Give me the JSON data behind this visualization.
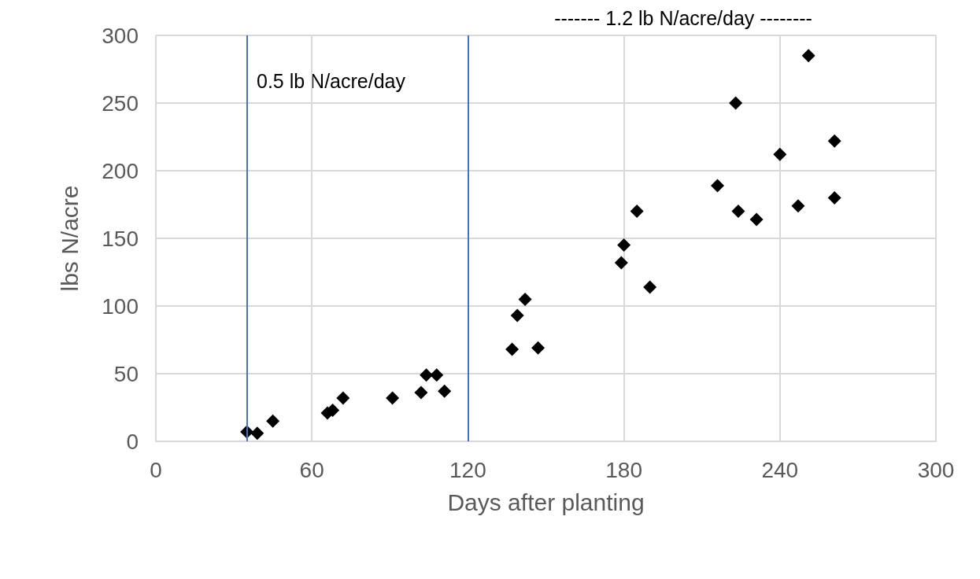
{
  "chart_data": {
    "type": "scatter",
    "xlabel": "Days after planting",
    "ylabel": "lbs N/acre",
    "x": [
      35,
      39,
      45,
      66,
      68,
      72,
      91,
      102,
      104,
      108,
      111,
      137,
      139,
      142,
      147,
      179,
      180,
      185,
      190,
      216,
      223,
      224,
      231,
      240,
      247,
      251,
      261,
      261
    ],
    "values": [
      7,
      6,
      15,
      21,
      23,
      32,
      32,
      36,
      49,
      49,
      37,
      68,
      93,
      105,
      69,
      132,
      145,
      170,
      114,
      189,
      250,
      170,
      164,
      212,
      174,
      285,
      222,
      180
    ],
    "color": "#000000",
    "marker": "diamond",
    "xlim": [
      0,
      300
    ],
    "xticks": [
      0,
      60,
      120,
      180,
      240,
      300
    ],
    "ylim": [
      0,
      300
    ],
    "yticks": [
      0,
      50,
      100,
      150,
      200,
      250,
      300
    ],
    "grid": true,
    "ref_lines": [
      {
        "axis": "x",
        "value": 35,
        "color": "#4472c4"
      },
      {
        "axis": "x",
        "value": 120,
        "color": "#4472c4"
      }
    ],
    "annotations": [
      "0.5 lb N/acre/day",
      "------- 1.2 lb N/acre/day --------"
    ]
  }
}
